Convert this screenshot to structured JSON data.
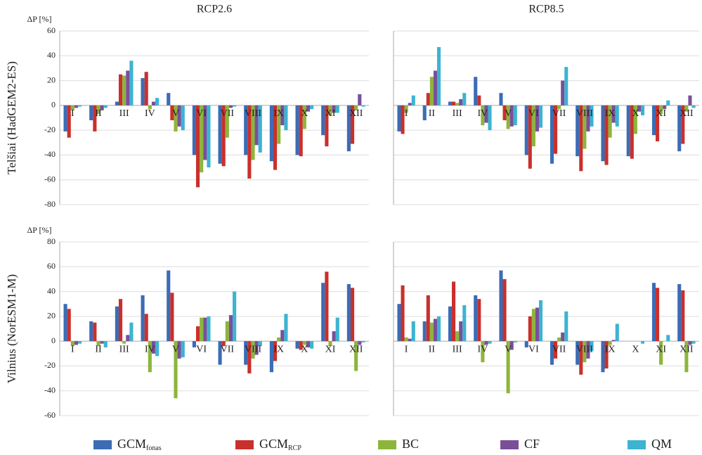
{
  "chart_data": [
    {
      "type": "bar",
      "title": "RCP2.6",
      "ylabel": "ΔP [%]",
      "row_label": "Telšiai (HadGEM2-ES)",
      "show_ytick_labels": true,
      "categories": [
        "I",
        "II",
        "III",
        "IV",
        "V",
        "VI",
        "VII",
        "VIII",
        "IX",
        "X",
        "XI",
        "XII"
      ],
      "ylim": [
        -80,
        60
      ],
      "yticks": [
        -80,
        -60,
        -40,
        -20,
        0,
        20,
        40,
        60
      ],
      "grid": true,
      "series": [
        {
          "name": "GCM",
          "subscript": "fonas",
          "color": "#3b6cb5",
          "values": [
            -21,
            -12,
            3,
            22,
            10,
            -40,
            -47,
            -40,
            -45,
            -40,
            -24,
            -37
          ]
        },
        {
          "name": "GCM",
          "subscript": "RCP",
          "color": "#c9302c",
          "values": [
            -26,
            -21,
            25,
            27,
            -12,
            -66,
            -49,
            -59,
            -52,
            -41,
            -33,
            -31
          ]
        },
        {
          "name": "BC",
          "color": "#8db53c",
          "values": [
            -4,
            -7,
            24,
            -3,
            -21,
            -54,
            -26,
            -44,
            -31,
            -19,
            -8,
            -4
          ]
        },
        {
          "name": "CF",
          "color": "#7a4f9a",
          "values": [
            -2,
            -4,
            28,
            3,
            -17,
            -44,
            -2,
            -32,
            -16,
            -5,
            -6,
            9
          ]
        },
        {
          "name": "QM",
          "color": "#3db3d2",
          "values": [
            -1,
            -2,
            36,
            6,
            -20,
            -50,
            -1,
            -38,
            -20,
            -3,
            -6,
            -1
          ]
        }
      ]
    },
    {
      "type": "bar",
      "title": "RCP8.5",
      "show_ytick_labels": false,
      "categories": [
        "I",
        "II",
        "III",
        "IV",
        "V",
        "VI",
        "VII",
        "VIII",
        "IX",
        "X",
        "XI",
        "XII"
      ],
      "ylim": [
        -80,
        60
      ],
      "yticks": [
        -80,
        -60,
        -40,
        -20,
        0,
        20,
        40,
        60
      ],
      "grid": true,
      "series": [
        {
          "color": "#3b6cb5",
          "values": [
            -21,
            -12,
            3,
            23,
            10,
            -40,
            -47,
            -41,
            -45,
            -41,
            -24,
            -37
          ]
        },
        {
          "color": "#c9302c",
          "values": [
            -23,
            10,
            3,
            8,
            -12,
            -51,
            -39,
            -53,
            -48,
            -43,
            -29,
            -31
          ]
        },
        {
          "color": "#8db53c",
          "values": [
            -6,
            23,
            2,
            -16,
            -19,
            -33,
            -3,
            -35,
            -26,
            -23,
            -7,
            -5
          ]
        },
        {
          "color": "#7a4f9a",
          "values": [
            2,
            28,
            5,
            -14,
            -17,
            -21,
            20,
            -21,
            -14,
            -5,
            -3,
            8
          ]
        },
        {
          "color": "#3db3d2",
          "values": [
            8,
            47,
            10,
            -20,
            -16,
            -18,
            31,
            -17,
            -17,
            -8,
            4,
            -2
          ]
        }
      ]
    },
    {
      "type": "bar",
      "ylabel": "ΔP [%]",
      "row_label": "Vilnius (NorESM1-M)",
      "show_ytick_labels": true,
      "categories": [
        "I",
        "II",
        "III",
        "IV",
        "V",
        "VI",
        "VII",
        "VIII",
        "IX",
        "X",
        "XI",
        "XII"
      ],
      "ylim": [
        -60,
        80
      ],
      "yticks": [
        -60,
        -40,
        -20,
        0,
        20,
        40,
        60,
        80
      ],
      "grid": true,
      "series": [
        {
          "color": "#3b6cb5",
          "values": [
            30,
            16,
            28,
            37,
            57,
            -5,
            -19,
            -19,
            -25,
            -6,
            47,
            46
          ]
        },
        {
          "color": "#c9302c",
          "values": [
            26,
            15,
            34,
            22,
            39,
            12,
            -4,
            -26,
            -16,
            -7,
            56,
            43
          ]
        },
        {
          "color": "#8db53c",
          "values": [
            -4,
            -4,
            -2,
            -25,
            -46,
            19,
            16,
            -14,
            3,
            -3,
            -4,
            -24
          ]
        },
        {
          "color": "#7a4f9a",
          "values": [
            -3,
            -2,
            5,
            -10,
            -14,
            19,
            21,
            -11,
            9,
            -5,
            8,
            -3
          ]
        },
        {
          "color": "#3db3d2",
          "values": [
            -2,
            -5,
            15,
            -12,
            -13,
            20,
            40,
            -4,
            22,
            -6,
            19,
            -1
          ]
        }
      ]
    },
    {
      "type": "bar",
      "show_ytick_labels": false,
      "categories": [
        "I",
        "II",
        "III",
        "IV",
        "V",
        "VI",
        "VII",
        "VIII",
        "IX",
        "X",
        "XI",
        "XII"
      ],
      "ylim": [
        -60,
        80
      ],
      "yticks": [
        -60,
        -40,
        -20,
        0,
        20,
        40,
        60,
        80
      ],
      "grid": true,
      "series": [
        {
          "color": "#3b6cb5",
          "values": [
            30,
            16,
            28,
            37,
            57,
            -5,
            -19,
            -19,
            -25,
            0,
            47,
            46
          ]
        },
        {
          "color": "#c9302c",
          "values": [
            45,
            37,
            48,
            34,
            50,
            20,
            -14,
            -27,
            -22,
            0,
            43,
            41
          ]
        },
        {
          "color": "#8db53c",
          "values": [
            3,
            15,
            8,
            -17,
            -42,
            26,
            3,
            -17,
            -3,
            0,
            -19,
            -25
          ]
        },
        {
          "color": "#7a4f9a",
          "values": [
            2,
            18,
            16,
            -3,
            -7,
            27,
            7,
            -14,
            1,
            0,
            0,
            -3
          ]
        },
        {
          "color": "#3db3d2",
          "values": [
            16,
            20,
            29,
            -2,
            -1,
            33,
            24,
            -8,
            14,
            -2,
            5,
            -2
          ]
        }
      ]
    }
  ]
}
